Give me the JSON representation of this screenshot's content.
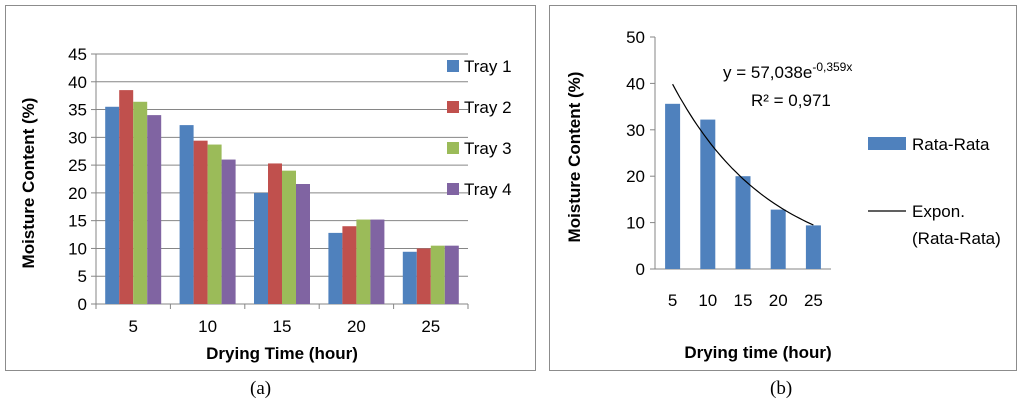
{
  "chart_data": [
    {
      "type": "bar",
      "panel": "(a)",
      "categories": [
        "5",
        "10",
        "15",
        "20",
        "25"
      ],
      "series": [
        {
          "name": "Tray 1",
          "color": "#4f81bd",
          "values": [
            35.5,
            32.2,
            20.0,
            12.8,
            9.4
          ]
        },
        {
          "name": "Tray 2",
          "color": "#c0504d",
          "values": [
            38.5,
            29.4,
            25.3,
            14.0,
            10.0
          ]
        },
        {
          "name": "Tray 3",
          "color": "#9bbb59",
          "values": [
            36.4,
            28.7,
            24.0,
            15.2,
            10.5
          ]
        },
        {
          "name": "Tray 4",
          "color": "#8064a2",
          "values": [
            34.0,
            26.0,
            21.6,
            15.2,
            10.5
          ]
        }
      ],
      "xlabel": "Drying Time (hour)",
      "ylabel": "Moisture Content (%)",
      "ylim": [
        0,
        45
      ],
      "yticks": [
        "0",
        "5",
        "10",
        "15",
        "20",
        "25",
        "30",
        "35",
        "40",
        "45"
      ],
      "grid": true,
      "legend": "right"
    },
    {
      "type": "bar",
      "panel": "(b)",
      "categories": [
        "5",
        "10",
        "15",
        "20",
        "25"
      ],
      "series": [
        {
          "name": "Rata-Rata",
          "color": "#4f81bd",
          "values": [
            35.6,
            32.2,
            20.0,
            12.8,
            9.4
          ]
        }
      ],
      "trendline": {
        "name_line1": "Expon.",
        "name_line2": "(Rata-Rata)",
        "a": 57.038,
        "b": -0.359,
        "equation_prefix": "y = 57,038e",
        "equation_exponent": "-0,359x",
        "r2_label": "R² = 0,971"
      },
      "xlabel": "Drying time (hour)",
      "ylabel": "Moisture Content (%)",
      "ylim": [
        0,
        50
      ],
      "yticks": [
        "0",
        "10",
        "20",
        "30",
        "40",
        "50"
      ],
      "grid": false,
      "legend": "right"
    }
  ],
  "captions": {
    "a": "(a)",
    "b": "(b)"
  }
}
